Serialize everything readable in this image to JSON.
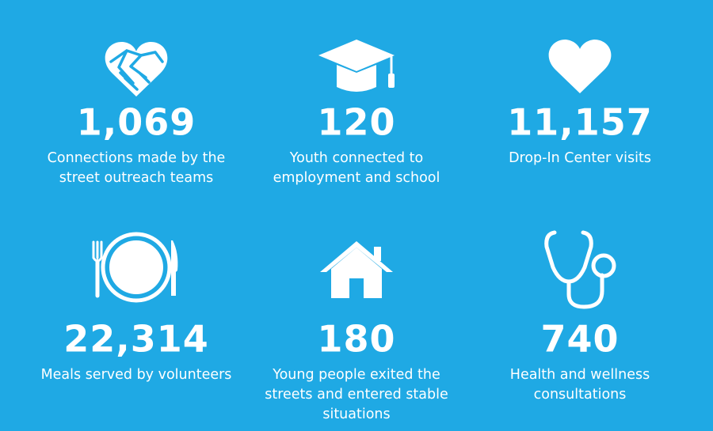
{
  "stats": [
    {
      "value": "1,069",
      "description": [
        "Connections made by the",
        "street outreach teams"
      ]
    },
    {
      "value": "120",
      "description": [
        "Youth connected to",
        "employment and school"
      ]
    },
    {
      "value": "11,157",
      "description": [
        "Drop-In Center visits"
      ]
    },
    {
      "value": "22,314",
      "description": [
        "Meals served by volunteers"
      ]
    },
    {
      "value": "180",
      "description": [
        "Young people exited the",
        "streets and entered stable",
        "situations"
      ]
    },
    {
      "value": "740",
      "description": [
        "Health and wellness",
        "consultations"
      ]
    }
  ]
}
